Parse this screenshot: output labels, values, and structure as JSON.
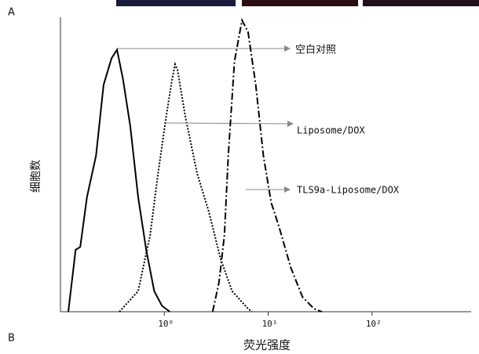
{
  "chart_data": {
    "type": "line",
    "panel_labels": [
      "A",
      "B"
    ],
    "x_label": "荧光强度",
    "y_label": "细胞数",
    "xscale": "log",
    "xlim": [
      0.1,
      1000
    ],
    "ylim": [
      0,
      100
    ],
    "xticks": [
      {
        "value": 1,
        "label": "10⁰"
      },
      {
        "value": 10,
        "label": "10¹"
      },
      {
        "value": 100,
        "label": "10²"
      }
    ],
    "series": [
      {
        "name": "空白对照",
        "color": "#000000",
        "line_style": "solid",
        "x": [
          0.119,
          0.14,
          0.155,
          0.18,
          0.22,
          0.26,
          0.31,
          0.35,
          0.4,
          0.47,
          0.56,
          0.67,
          0.8,
          0.95,
          1.13
        ],
        "values": [
          0,
          21,
          22,
          39,
          53,
          77,
          86,
          89,
          79,
          63,
          39,
          21,
          7,
          2,
          0
        ]
      },
      {
        "name": "Liposome/DOX",
        "color": "#000000",
        "line_style": "dotted",
        "x": [
          0.37,
          0.56,
          0.73,
          0.87,
          1.04,
          1.19,
          1.27,
          1.34,
          1.6,
          2.07,
          2.68,
          3.48,
          4.5,
          6.4,
          7.0
        ],
        "values": [
          0,
          7,
          26,
          47,
          66,
          79,
          84,
          82,
          66,
          47,
          34,
          18,
          7,
          1,
          0
        ]
      },
      {
        "name": "TLS9a-Liposome/DOX",
        "color": "#000000",
        "line_style": "dashdot",
        "x": [
          2.92,
          3.36,
          3.79,
          4.13,
          4.74,
          5.6,
          6.4,
          7.6,
          9.0,
          10.7,
          12.7,
          16.5,
          21.4,
          27.6,
          32.9
        ],
        "values": [
          0,
          10,
          26,
          53,
          85,
          99,
          95,
          77,
          53,
          37,
          29,
          15,
          5,
          1,
          0
        ]
      }
    ]
  }
}
